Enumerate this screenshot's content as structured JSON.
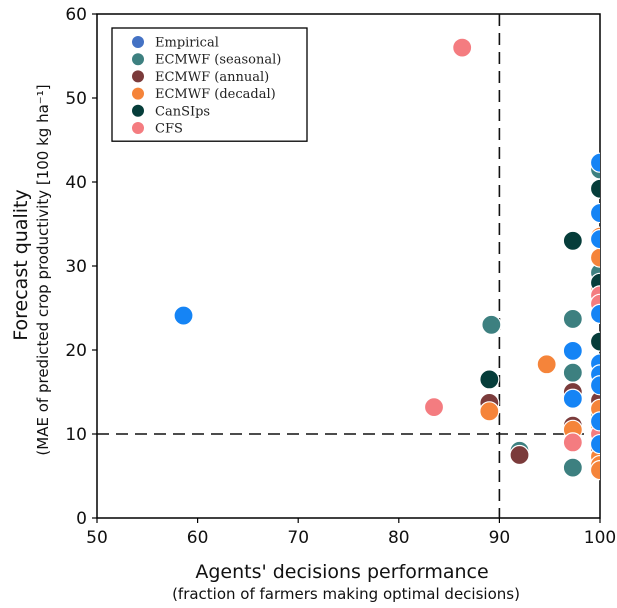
{
  "chart_data": {
    "type": "scatter",
    "xlabel": "Agents' decisions performance",
    "xlabel_sub": "(fraction of farmers making optimal decisions)",
    "ylabel": "Forecast quality",
    "ylabel_sub": "(MAE of predicted crop productivity [100 kg ha⁻¹]",
    "xlim": [
      50,
      100
    ],
    "ylim": [
      0,
      60
    ],
    "xticks": [
      "50",
      "60",
      "70",
      "80",
      "90",
      "100"
    ],
    "yticks": [
      "0",
      "10",
      "20",
      "30",
      "40",
      "50",
      "60"
    ],
    "grid": false,
    "legend_position": "top-left",
    "reference_lines": {
      "x": 90,
      "y": 10
    },
    "series": [
      {
        "name": "Empirical",
        "color": "#4472c4",
        "points": []
      },
      {
        "name": "ECMWF (seasonal)",
        "color": "#3d8080",
        "points": [
          [
            89.2,
            23
          ],
          [
            92,
            8
          ],
          [
            97.3,
            23.7
          ],
          [
            97.3,
            17.3
          ],
          [
            97.3,
            6
          ],
          [
            100,
            41.5
          ],
          [
            100,
            29.2
          ],
          [
            100,
            12.5
          ]
        ]
      },
      {
        "name": "ECMWF (annual)",
        "color": "#7b3b3b",
        "points": [
          [
            89,
            13.7
          ],
          [
            92,
            7.5
          ],
          [
            97.3,
            15
          ],
          [
            97.3,
            11
          ],
          [
            100,
            14
          ],
          [
            100,
            8.3
          ]
        ]
      },
      {
        "name": "ECMWF (decadal)",
        "color": "#f5843a",
        "points": [
          [
            89,
            12.7
          ],
          [
            94.7,
            18.3
          ],
          [
            97.3,
            10.5
          ],
          [
            100,
            33.5
          ],
          [
            100,
            31
          ],
          [
            100,
            27.5
          ],
          [
            100,
            13
          ],
          [
            100,
            11
          ],
          [
            100,
            9.2
          ],
          [
            100,
            7.3
          ],
          [
            100,
            6.3
          ],
          [
            100,
            5.7
          ]
        ]
      },
      {
        "name": "CanSIps",
        "color": "#063d3a",
        "points": [
          [
            89,
            16.5
          ],
          [
            97.3,
            33
          ],
          [
            100,
            39.2
          ],
          [
            100,
            28
          ],
          [
            100,
            21
          ]
        ]
      },
      {
        "name": "CFS",
        "color": "#f47c80",
        "points": [
          [
            83.5,
            13.2
          ],
          [
            86.3,
            56
          ],
          [
            97.3,
            9
          ],
          [
            100,
            26.5
          ],
          [
            100,
            25.5
          ],
          [
            100,
            10
          ]
        ]
      },
      {
        "name": "",
        "color": "#1584f5",
        "points": [
          [
            58.6,
            24.1
          ],
          [
            97.3,
            19.9
          ],
          [
            97.3,
            14.2
          ],
          [
            100,
            42.3
          ],
          [
            100,
            36.3
          ],
          [
            100,
            33.2
          ],
          [
            100,
            24.3
          ],
          [
            100,
            18.4
          ],
          [
            100,
            17.1
          ],
          [
            100,
            15.8
          ],
          [
            100,
            11.5
          ],
          [
            100,
            8.8
          ]
        ]
      }
    ]
  }
}
